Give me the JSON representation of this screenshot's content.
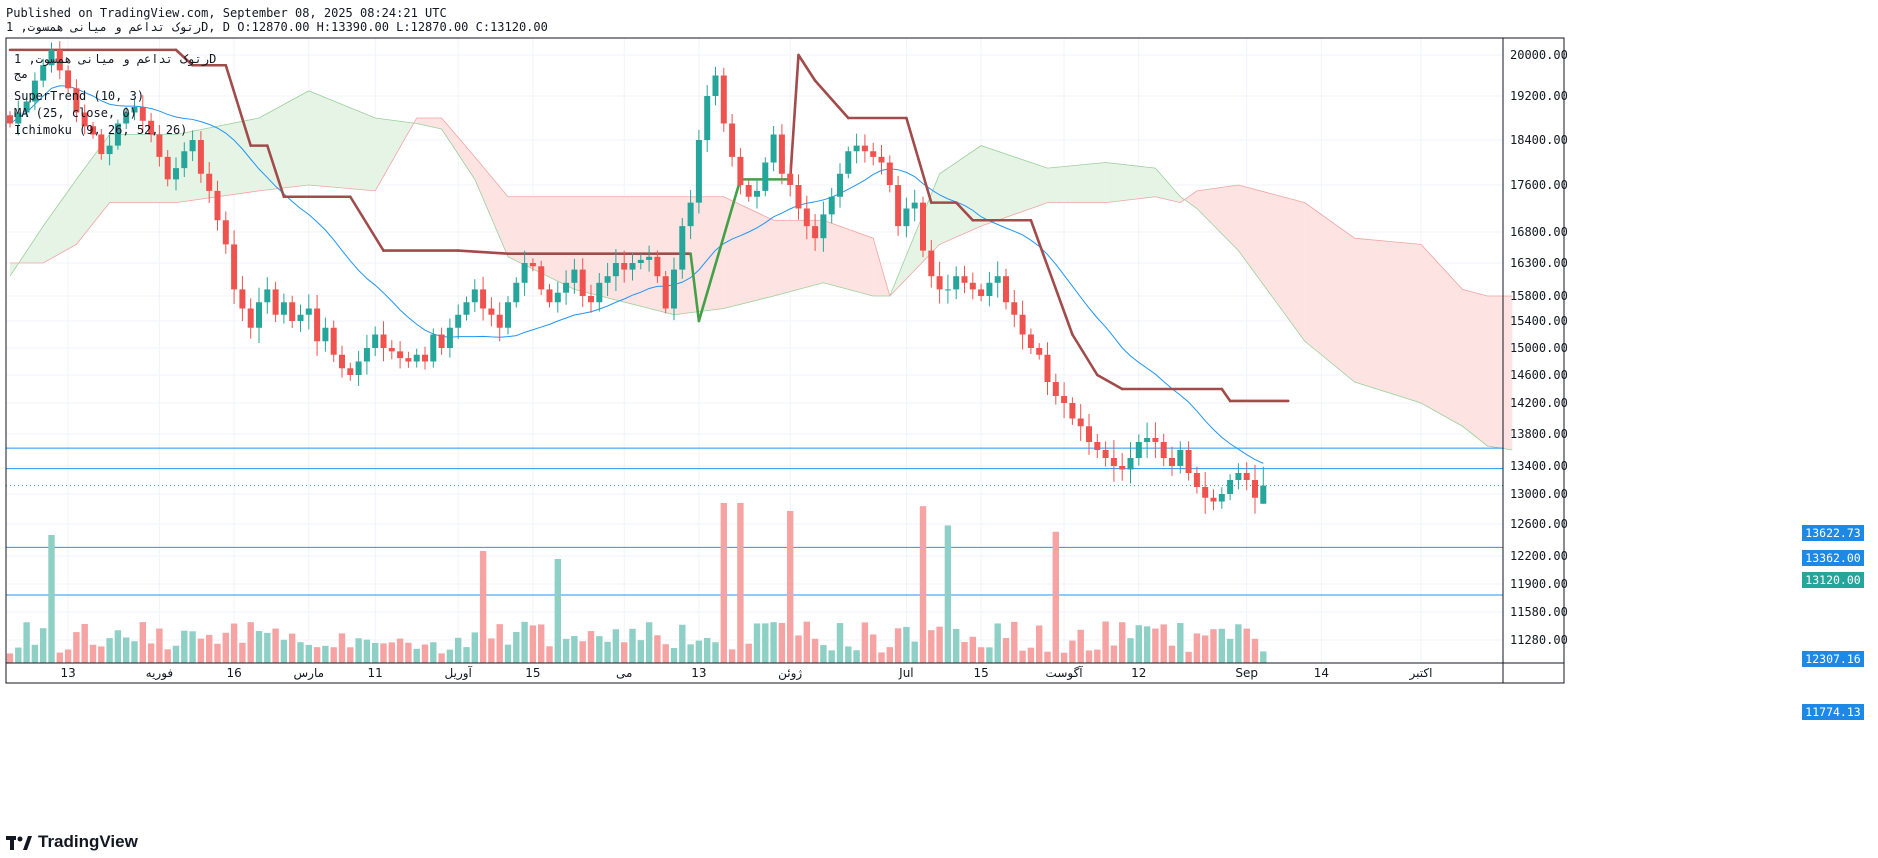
{
  "header": {
    "line1": "Published on TradingView.com, September 08, 2025 08:24:21 UTC",
    "line2": "رتوک تداعم و میانی همسوت, 1D, D O:12870.00 H:13390.00 L:12870.00 C:13120.00"
  },
  "legend": {
    "symbol": "رتوک تداعم و میانی همسوت, 1D",
    "exchange": "مج",
    "supertrend": "SuperTrend (10, 3)",
    "ma": "MA (25, close, 0)",
    "ichimoku": "Ichimoku (9, 26, 52, 26)"
  },
  "brand": {
    "name": "TradingView"
  },
  "colors": {
    "up": "#26a69a",
    "down": "#ef5350",
    "up_vol": "#8fd0c6",
    "down_vol": "#f5a3a3",
    "ma": "#2196f3",
    "supertrend_down": "#a14b4b",
    "supertrend_up": "#43a047",
    "cloud_bull": "#e6f4e6",
    "cloud_bear": "#fde3e2",
    "hline": "#2196f3",
    "label_bg": "#1e88e5",
    "last_price": "#26a69a"
  },
  "chart_data": {
    "type": "candlestick",
    "y_axis": {
      "ticks": [
        11280,
        11580,
        11900,
        12200,
        12600,
        13000,
        13400,
        13800,
        14200,
        14600,
        15000,
        15400,
        15800,
        16300,
        16800,
        17600,
        18400,
        19200,
        20000
      ],
      "tick_labels": [
        "11280.00",
        "11580.00",
        "11900.00",
        "12200.00",
        "12600.00",
        "13000.00",
        "13400.00",
        "13800.00",
        "14200.00",
        "14600.00",
        "15000.00",
        "15400.00",
        "15800.00",
        "16300.00",
        "16800.00",
        "17600.00",
        "18400.00",
        "19200.00",
        "20000.00"
      ]
    },
    "x_axis": {
      "ticks": [
        {
          "label": "13",
          "bar": 7
        },
        {
          "label": "فوریه",
          "bar": 18
        },
        {
          "label": "16",
          "bar": 27
        },
        {
          "label": "مارس",
          "bar": 36
        },
        {
          "label": "11",
          "bar": 44
        },
        {
          "label": "آوریل",
          "bar": 54
        },
        {
          "label": "15",
          "bar": 63
        },
        {
          "label": "می",
          "bar": 74
        },
        {
          "label": "13",
          "bar": 83
        },
        {
          "label": "ژوئن",
          "bar": 94
        },
        {
          "label": "Jul",
          "bar": 108
        },
        {
          "label": "15",
          "bar": 117
        },
        {
          "label": "آگوست",
          "bar": 127
        },
        {
          "label": "12",
          "bar": 136
        },
        {
          "label": "Sep",
          "bar": 149
        },
        {
          "label": "14",
          "bar": 158
        },
        {
          "label": "اکتبر",
          "bar": 170
        }
      ]
    },
    "horizontal_lines": [
      {
        "value": 13622.73,
        "label": "13622.73"
      },
      {
        "value": 13362.0,
        "label": "13362.00"
      },
      {
        "value": 12307.16,
        "label": "12307.16"
      },
      {
        "value": 11774.13,
        "label": "11774.13"
      }
    ],
    "last_price": {
      "value": 13120.0,
      "label": "13120.00"
    },
    "last_ohlc": {
      "open": 12870,
      "high": 13390,
      "low": 12870,
      "close": 13120
    },
    "closes": [
      18700,
      18900,
      19100,
      19500,
      19800,
      20100,
      19700,
      19350,
      18900,
      18650,
      18500,
      18150,
      18300,
      18700,
      18900,
      19000,
      18750,
      18500,
      18100,
      17700,
      17900,
      18200,
      18400,
      17800,
      17500,
      17000,
      16600,
      15900,
      15600,
      15300,
      15700,
      15900,
      15500,
      15700,
      15400,
      15500,
      15600,
      15100,
      15300,
      14900,
      14700,
      14600,
      14800,
      15000,
      15200,
      15000,
      14950,
      14850,
      14800,
      14900,
      14800,
      15200,
      15000,
      15300,
      15500,
      15700,
      15900,
      15600,
      15500,
      15300,
      15700,
      16000,
      16300,
      16250,
      15900,
      15700,
      15850,
      16000,
      16200,
      15800,
      15700,
      16000,
      16100,
      16300,
      16200,
      16300,
      16350,
      16400,
      16100,
      15600,
      16200,
      16900,
      17300,
      18400,
      19200,
      19600,
      18700,
      18100,
      17600,
      17400,
      17500,
      18000,
      18500,
      17800,
      17600,
      17200,
      16900,
      16700,
      17100,
      17400,
      17800,
      18200,
      18300,
      18200,
      18100,
      18000,
      17600,
      16900,
      17200,
      17300,
      16500,
      16100,
      15900,
      15900,
      16100,
      16000,
      15900,
      15800,
      16000,
      16100,
      15700,
      15500,
      15200,
      15000,
      14900,
      14500,
      14300,
      14200,
      14000,
      13900,
      13700,
      13600,
      13500,
      13400,
      13350,
      13500,
      13700,
      13750,
      13700,
      13500,
      13400,
      13600,
      13300,
      13100,
      12950,
      12900,
      13000,
      13200,
      13300,
      13200,
      12950,
      13120
    ],
    "supertrend": [
      {
        "bar": 0,
        "value": 20100,
        "dir": "down"
      },
      {
        "bar": 20,
        "value": 20100,
        "dir": "down"
      },
      {
        "bar": 22,
        "value": 19800,
        "dir": "down"
      },
      {
        "bar": 26,
        "value": 19800,
        "dir": "down"
      },
      {
        "bar": 29,
        "value": 18300,
        "dir": "down"
      },
      {
        "bar": 31,
        "value": 18300,
        "dir": "down"
      },
      {
        "bar": 33,
        "value": 17400,
        "dir": "down"
      },
      {
        "bar": 41,
        "value": 17400,
        "dir": "down"
      },
      {
        "bar": 45,
        "value": 16500,
        "dir": "down"
      },
      {
        "bar": 54,
        "value": 16500,
        "dir": "down"
      },
      {
        "bar": 60,
        "value": 16450,
        "dir": "down"
      },
      {
        "bar": 82,
        "value": 16450,
        "dir": "down"
      },
      {
        "bar": 83,
        "value": 15400,
        "dir": "up"
      },
      {
        "bar": 88,
        "value": 17700,
        "dir": "up"
      },
      {
        "bar": 94,
        "value": 17700,
        "dir": "up"
      },
      {
        "bar": 95,
        "value": 20000,
        "dir": "down"
      },
      {
        "bar": 97,
        "value": 19500,
        "dir": "down"
      },
      {
        "bar": 101,
        "value": 18800,
        "dir": "down"
      },
      {
        "bar": 108,
        "value": 18800,
        "dir": "down"
      },
      {
        "bar": 111,
        "value": 17300,
        "dir": "down"
      },
      {
        "bar": 114,
        "value": 17300,
        "dir": "down"
      },
      {
        "bar": 116,
        "value": 17000,
        "dir": "down"
      },
      {
        "bar": 123,
        "value": 17000,
        "dir": "down"
      },
      {
        "bar": 128,
        "value": 15200,
        "dir": "down"
      },
      {
        "bar": 131,
        "value": 14600,
        "dir": "down"
      },
      {
        "bar": 134,
        "value": 14400,
        "dir": "down"
      },
      {
        "bar": 146,
        "value": 14400,
        "dir": "down"
      },
      {
        "bar": 147,
        "value": 14230,
        "dir": "down"
      },
      {
        "bar": 154,
        "value": 14230,
        "dir": "down"
      }
    ],
    "cloud": [
      {
        "bar": 0,
        "a": 16100,
        "b": 16300
      },
      {
        "bar": 4,
        "a": 16900,
        "b": 16300
      },
      {
        "bar": 8,
        "a": 17700,
        "b": 16600
      },
      {
        "bar": 12,
        "a": 18500,
        "b": 17300
      },
      {
        "bar": 20,
        "a": 18500,
        "b": 17300
      },
      {
        "bar": 30,
        "a": 18800,
        "b": 17500
      },
      {
        "bar": 36,
        "a": 19300,
        "b": 17600
      },
      {
        "bar": 44,
        "a": 18800,
        "b": 17500
      },
      {
        "bar": 49,
        "a": 18700,
        "b": 18800
      },
      {
        "bar": 52,
        "a": 18600,
        "b": 18800
      },
      {
        "bar": 56,
        "a": 17700,
        "b": 18100
      },
      {
        "bar": 60,
        "a": 16400,
        "b": 17400
      },
      {
        "bar": 68,
        "a": 15900,
        "b": 17400
      },
      {
        "bar": 80,
        "a": 15500,
        "b": 17400
      },
      {
        "bar": 86,
        "a": 15600,
        "b": 17400
      },
      {
        "bar": 92,
        "a": 15800,
        "b": 17000
      },
      {
        "bar": 98,
        "a": 16000,
        "b": 17000
      },
      {
        "bar": 104,
        "a": 15800,
        "b": 16700
      },
      {
        "bar": 106,
        "a": 15800,
        "b": 15800
      },
      {
        "bar": 112,
        "a": 17800,
        "b": 16600
      },
      {
        "bar": 117,
        "a": 18300,
        "b": 16900
      },
      {
        "bar": 125,
        "a": 17900,
        "b": 17300
      },
      {
        "bar": 132,
        "a": 18000,
        "b": 17300
      },
      {
        "bar": 138,
        "a": 17900,
        "b": 17400
      },
      {
        "bar": 141,
        "a": 17400,
        "b": 17300
      },
      {
        "bar": 143,
        "a": 17200,
        "b": 17500
      },
      {
        "bar": 148,
        "a": 16500,
        "b": 17600
      },
      {
        "bar": 156,
        "a": 15100,
        "b": 17300
      },
      {
        "bar": 162,
        "a": 14500,
        "b": 16700
      },
      {
        "bar": 170,
        "a": 14200,
        "b": 16600
      },
      {
        "bar": 175,
        "a": 13900,
        "b": 15900
      },
      {
        "bar": 178,
        "a": 13650,
        "b": 15800
      },
      {
        "bar": 181,
        "a": 13600,
        "b": 15800
      }
    ]
  }
}
